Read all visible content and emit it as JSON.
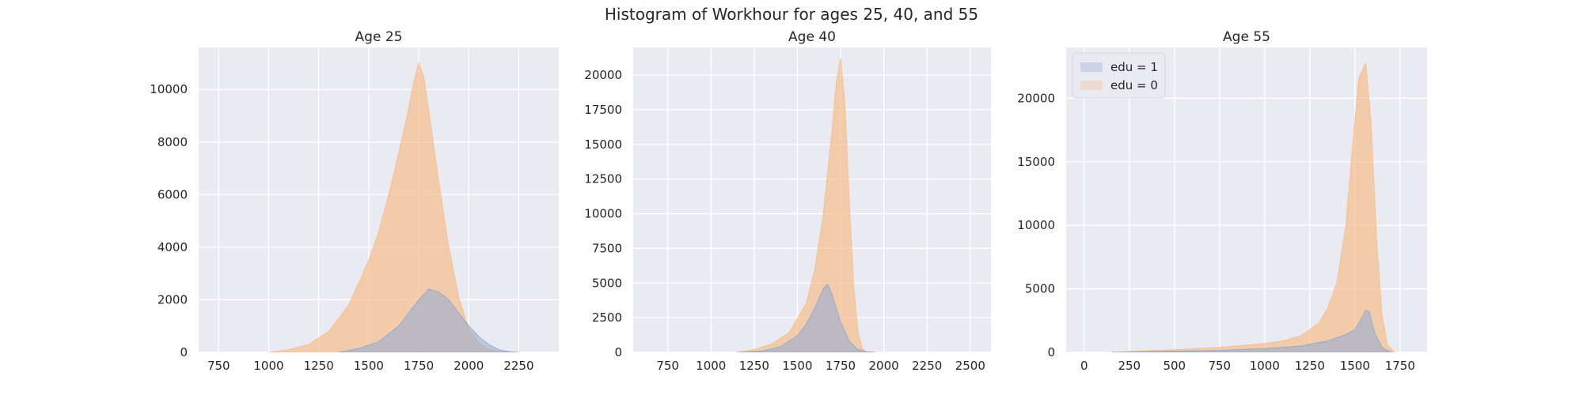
{
  "figure": {
    "title": "Histogram of Workhour for ages 25, 40, and 55",
    "background": "#ffffff",
    "axes_background": "#eaeaf2",
    "grid_color": "#ffffff"
  },
  "colors": {
    "edu1": "#8fa9d4",
    "edu0": "#f5c08e",
    "overlap": "#b3b98f"
  },
  "legend": {
    "location": "upper-left",
    "panel": 2,
    "entries": [
      "edu = 1",
      "edu = 0"
    ]
  },
  "chart_data": [
    {
      "type": "histogram",
      "title": "Age 25",
      "xlim": [
        650,
        2450
      ],
      "ylim": [
        0,
        11600
      ],
      "xticks": [
        750,
        1000,
        1250,
        1500,
        1750,
        2000,
        2250
      ],
      "yticks": [
        0,
        2000,
        4000,
        6000,
        8000,
        10000
      ],
      "grid": true,
      "series": [
        {
          "name": "edu = 0",
          "x": [
            1000,
            1100,
            1200,
            1300,
            1400,
            1500,
            1550,
            1600,
            1650,
            1700,
            1725,
            1750,
            1775,
            1800,
            1850,
            1900,
            1950,
            2000,
            2050,
            2100,
            2150,
            2200
          ],
          "y": [
            0,
            100,
            300,
            800,
            1800,
            3500,
            4600,
            6000,
            7600,
            9300,
            10300,
            11000,
            10500,
            9200,
            6500,
            4000,
            2100,
            900,
            350,
            120,
            30,
            0
          ]
        },
        {
          "name": "edu = 1",
          "x": [
            1350,
            1450,
            1550,
            1650,
            1700,
            1750,
            1800,
            1850,
            1900,
            1950,
            2000,
            2050,
            2100,
            2150,
            2200,
            2250
          ],
          "y": [
            0,
            150,
            400,
            1000,
            1500,
            2000,
            2400,
            2300,
            2000,
            1500,
            1000,
            600,
            300,
            100,
            30,
            0
          ]
        }
      ]
    },
    {
      "type": "histogram",
      "title": "Age 40",
      "xlim": [
        550,
        2620
      ],
      "ylim": [
        0,
        22000
      ],
      "xticks": [
        750,
        1000,
        1250,
        1500,
        1750,
        2000,
        2250,
        2500
      ],
      "yticks": [
        0,
        2500,
        5000,
        7500,
        10000,
        12500,
        15000,
        17500,
        20000
      ],
      "grid": true,
      "series": [
        {
          "name": "edu = 0",
          "x": [
            1150,
            1250,
            1350,
            1450,
            1550,
            1600,
            1650,
            1700,
            1725,
            1750,
            1775,
            1800,
            1825,
            1850,
            1875,
            1900
          ],
          "y": [
            0,
            200,
            600,
            1400,
            3500,
            6000,
            10000,
            16000,
            19500,
            21200,
            18000,
            11000,
            5000,
            1500,
            300,
            0
          ]
        },
        {
          "name": "edu = 1",
          "x": [
            1150,
            1300,
            1400,
            1500,
            1550,
            1600,
            1650,
            1675,
            1700,
            1750,
            1800,
            1850,
            1900,
            1950
          ],
          "y": [
            0,
            100,
            400,
            1200,
            2000,
            3200,
            4600,
            4900,
            4200,
            2200,
            800,
            200,
            50,
            0
          ]
        }
      ]
    },
    {
      "type": "histogram",
      "title": "Age 55",
      "xlim": [
        -100,
        1900
      ],
      "ylim": [
        0,
        24000
      ],
      "xticks": [
        0,
        250,
        500,
        750,
        1000,
        1250,
        1500,
        1750
      ],
      "yticks": [
        0,
        5000,
        10000,
        15000,
        20000
      ],
      "grid": true,
      "series": [
        {
          "name": "edu = 0",
          "x": [
            150,
            300,
            500,
            750,
            1000,
            1100,
            1200,
            1300,
            1350,
            1400,
            1450,
            1480,
            1520,
            1560,
            1590,
            1620,
            1650,
            1680,
            1720
          ],
          "y": [
            0,
            100,
            200,
            400,
            700,
            900,
            1300,
            2300,
            3500,
            5500,
            10000,
            15000,
            21500,
            22800,
            18000,
            9000,
            3000,
            600,
            0
          ]
        },
        {
          "name": "edu = 1",
          "x": [
            150,
            300,
            500,
            750,
            1000,
            1200,
            1350,
            1450,
            1500,
            1530,
            1560,
            1580,
            1610,
            1650,
            1700
          ],
          "y": [
            0,
            50,
            100,
            150,
            300,
            500,
            900,
            1400,
            1800,
            2500,
            3300,
            3200,
            1500,
            400,
            0
          ]
        }
      ]
    }
  ]
}
